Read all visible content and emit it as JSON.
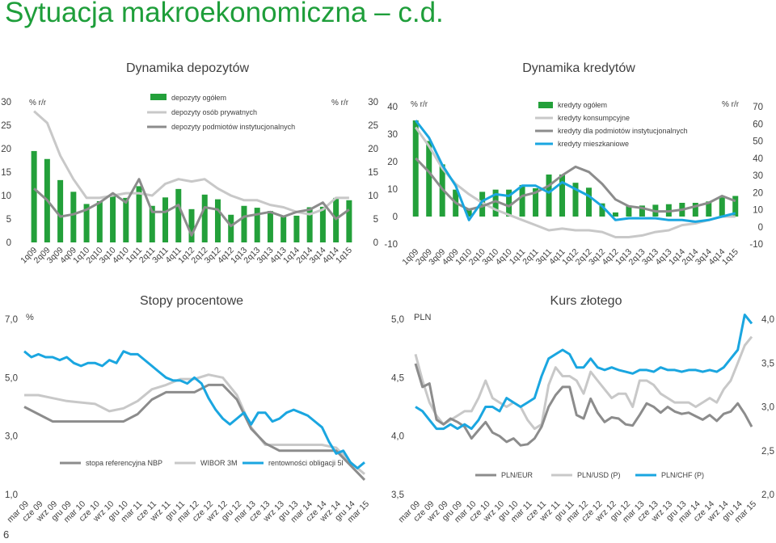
{
  "page": {
    "title": "Sytuacja makroekonomiczna – c.d.",
    "page_number": "6"
  },
  "colors": {
    "green": "#23a03a",
    "gray": "#8c8c8c",
    "lightgray": "#c8c8c8",
    "cyan": "#1aa6e0",
    "title": "#1e9e3a"
  },
  "chart_data": [
    {
      "id": "deposits",
      "type": "bar+line",
      "title": "Dynamika depozytów",
      "ylabel_left": "% r/r",
      "ylabel_right": "% r/r",
      "ylim": [
        0,
        30
      ],
      "yticks": [
        "0",
        "5",
        "10",
        "15",
        "20",
        "25",
        "30"
      ],
      "categories": [
        "1q09",
        "2q09",
        "3q09",
        "4q09",
        "1q10",
        "2q10",
        "3q10",
        "4q10",
        "1q11",
        "2q11",
        "3q11",
        "4q11",
        "1q12",
        "2q12",
        "3q12",
        "4q12",
        "1q13",
        "2q13",
        "3q13",
        "4q13",
        "1q14",
        "2q14",
        "3q14",
        "4q14",
        "1q15"
      ],
      "legend_placement": "top",
      "series": [
        {
          "name": "depozyty ogółem",
          "kind": "bar",
          "color": "#23a03a",
          "values": [
            19.5,
            17.8,
            13.3,
            10.8,
            8.2,
            8.8,
            10.1,
            9.5,
            12.0,
            7.8,
            9.6,
            11.4,
            7.1,
            10.2,
            9.2,
            5.9,
            7.8,
            7.4,
            6.7,
            5.6,
            5.7,
            7.5,
            7.6,
            9.5,
            9.0
          ]
        },
        {
          "name": "depozyty osób prywatnych",
          "kind": "line",
          "color": "#c8c8c8",
          "values": [
            28.0,
            25.5,
            18.5,
            13.5,
            9.5,
            9.5,
            10.0,
            10.5,
            10.5,
            10.0,
            12.5,
            13.5,
            13.0,
            13.5,
            11.5,
            10.0,
            9.0,
            9.0,
            8.0,
            7.5,
            6.5,
            6.0,
            7.0,
            9.5,
            9.5
          ]
        },
        {
          "name": "depozyty podmiotów instytucjonalnych",
          "kind": "line",
          "color": "#8c8c8c",
          "values": [
            11.5,
            9.0,
            5.5,
            6.0,
            7.0,
            8.5,
            10.5,
            8.5,
            13.5,
            6.5,
            6.5,
            8.0,
            1.5,
            7.5,
            7.0,
            3.5,
            5.5,
            6.0,
            6.5,
            5.5,
            6.5,
            7.0,
            8.5,
            5.0,
            7.0
          ]
        }
      ]
    },
    {
      "id": "credits",
      "type": "bar+line",
      "title": "Dynamika kredytów",
      "ylabel_left": "% r/r",
      "ylabel_right": "% r/r",
      "ylim_left": [
        -10,
        40
      ],
      "ylim_right": [
        -10,
        70
      ],
      "yticks_left": [
        "-10",
        "0",
        "10",
        "20",
        "30",
        "40"
      ],
      "yticks_right": [
        "-10",
        "0",
        "10",
        "20",
        "30",
        "40",
        "50",
        "60",
        "70"
      ],
      "categories": [
        "1q09",
        "2q09",
        "3q09",
        "4q09",
        "1q10",
        "2q10",
        "3q10",
        "4q10",
        "1q11",
        "2q11",
        "3q11",
        "4q11",
        "1q12",
        "2q12",
        "3q12",
        "4q12",
        "1q13",
        "2q13",
        "3q13",
        "4q13",
        "1q14",
        "2q14",
        "3q14",
        "4q14",
        "1q15"
      ],
      "legend_placement": "top-right",
      "series": [
        {
          "name": "kredyty ogółem",
          "kind": "bar",
          "axis": "left",
          "color": "#23a03a",
          "values": [
            35.0,
            27.5,
            19.0,
            9.8,
            3.0,
            9.0,
            9.8,
            9.8,
            11.5,
            10.3,
            15.3,
            15.3,
            12.3,
            10.5,
            4.8,
            1.5,
            4.0,
            4.0,
            4.3,
            4.5,
            5.0,
            5.0,
            5.5,
            7.0,
            7.5
          ]
        },
        {
          "name": "kredyty konsumpcyjne",
          "kind": "line",
          "axis": "right",
          "color": "#c8c8c8",
          "values": [
            58,
            47,
            34,
            25,
            19,
            14,
            10,
            7,
            4,
            1,
            -2,
            -1,
            -2,
            -2,
            -3,
            -6,
            -6,
            -5,
            -3,
            -2,
            1,
            2,
            4,
            6,
            6
          ]
        },
        {
          "name": "kredyty dla podmiotów instytucjonalnych",
          "kind": "line",
          "axis": "right",
          "color": "#8c8c8c",
          "values": [
            40,
            32,
            22,
            14,
            10,
            12,
            15,
            12,
            18,
            20,
            24,
            30,
            35,
            32,
            25,
            16,
            12,
            11,
            9,
            9,
            10,
            12,
            14,
            18,
            15
          ]
        },
        {
          "name": "kredyty mieszkaniowe",
          "kind": "line",
          "axis": "right",
          "color": "#1aa6e0",
          "values": [
            62,
            52,
            36,
            24,
            4,
            15,
            19,
            18,
            24,
            24,
            20,
            26,
            22,
            18,
            12,
            4,
            5,
            5,
            5,
            4,
            4,
            3,
            4,
            6,
            8
          ]
        }
      ]
    },
    {
      "id": "rates",
      "type": "line",
      "title": "Stopy procentowe",
      "ylabel": "%",
      "ylim": [
        1,
        7
      ],
      "yticks": [
        "1,0",
        "3,0",
        "5,0",
        "7,0"
      ],
      "xticks": [
        "mar 09",
        "cze 09",
        "wrz 09",
        "gru 09",
        "mar 10",
        "cze 10",
        "wrz 10",
        "gru 10",
        "mar 11",
        "cze 11",
        "wrz 11",
        "gru 11",
        "mar 12",
        "cze 12",
        "wrz 12",
        "gru 12",
        "mar 13",
        "cze 13",
        "wrz 13",
        "gru 13",
        "mar 14",
        "cze 14",
        "wrz 14",
        "gru 14",
        "mar 15"
      ],
      "legend_placement": "bottom",
      "series": [
        {
          "name": "stopa referencyjna NBP",
          "color": "#8c8c8c",
          "x": [
            0,
            1,
            2,
            3,
            4,
            5,
            6,
            7,
            8,
            9,
            10,
            11,
            12,
            13,
            14,
            15,
            16,
            17,
            18,
            19,
            20,
            21,
            22,
            23,
            24
          ],
          "values": [
            4.0,
            3.75,
            3.5,
            3.5,
            3.5,
            3.5,
            3.5,
            3.5,
            3.75,
            4.25,
            4.5,
            4.5,
            4.5,
            4.75,
            4.75,
            4.25,
            3.25,
            2.75,
            2.5,
            2.5,
            2.5,
            2.5,
            2.5,
            2.0,
            1.5
          ]
        },
        {
          "name": "WIBOR 3M",
          "color": "#c8c8c8",
          "x": [
            0,
            1,
            2,
            3,
            4,
            5,
            6,
            7,
            8,
            9,
            10,
            11,
            12,
            13,
            14,
            15,
            16,
            17,
            18,
            19,
            20,
            21,
            22,
            23,
            24
          ],
          "values": [
            4.4,
            4.4,
            4.3,
            4.2,
            4.15,
            4.1,
            3.85,
            3.95,
            4.2,
            4.6,
            4.75,
            4.95,
            4.95,
            5.1,
            5.0,
            4.4,
            3.3,
            2.7,
            2.7,
            2.7,
            2.7,
            2.7,
            2.6,
            2.1,
            1.7
          ]
        },
        {
          "name": "rentowności obligacji 5l",
          "color": "#1aa6e0",
          "x": [
            0,
            0.5,
            1,
            1.5,
            2,
            2.5,
            3,
            3.5,
            4,
            4.5,
            5,
            5.5,
            6,
            6.5,
            7,
            7.5,
            8,
            8.5,
            9,
            9.5,
            10,
            10.5,
            11,
            11.5,
            12,
            12.5,
            13,
            13.5,
            14,
            14.5,
            15,
            15.5,
            16,
            16.5,
            17,
            17.5,
            18,
            18.5,
            19,
            19.5,
            20,
            20.5,
            21,
            21.5,
            22,
            22.5,
            23,
            23.5,
            24
          ],
          "values": [
            5.9,
            5.7,
            5.8,
            5.7,
            5.7,
            5.6,
            5.7,
            5.5,
            5.4,
            5.5,
            5.5,
            5.4,
            5.6,
            5.5,
            5.9,
            5.8,
            5.8,
            5.6,
            5.4,
            5.2,
            5.0,
            4.9,
            4.9,
            4.8,
            5.0,
            4.8,
            4.3,
            3.9,
            3.6,
            3.4,
            3.6,
            3.8,
            3.4,
            3.8,
            3.8,
            3.5,
            3.6,
            3.8,
            3.9,
            3.8,
            3.7,
            3.5,
            3.3,
            2.8,
            2.4,
            2.5,
            2.1,
            1.9,
            2.1
          ]
        }
      ]
    },
    {
      "id": "fx",
      "type": "line",
      "title": "Kurs złotego",
      "ylabel_left": "PLN",
      "ylim_left": [
        3.5,
        5.0
      ],
      "ylim_right": [
        2.0,
        4.0
      ],
      "yticks_left": [
        "3,5",
        "4,0",
        "4,5",
        "5,0"
      ],
      "yticks_right": [
        "2,0",
        "2,5",
        "3,0",
        "3,5",
        "4,0"
      ],
      "xticks": [
        "mar 09",
        "cze 09",
        "wrz 09",
        "gru 09",
        "mar 10",
        "cze 10",
        "wrz 10",
        "gru 10",
        "mar 11",
        "cze 11",
        "wrz 11",
        "gru 11",
        "mar 12",
        "cze 12",
        "wrz 12",
        "gru 12",
        "mar 13",
        "cze 13",
        "wrz 13",
        "gru 13",
        "mar 14",
        "cze 14",
        "wrz 14",
        "gru 14",
        "mar 15"
      ],
      "legend_placement": "bottom",
      "series": [
        {
          "name": "PLN/EUR",
          "axis": "left",
          "color": "#8c8c8c",
          "x": [
            0,
            0.5,
            1,
            1.5,
            2,
            2.5,
            3,
            3.5,
            4,
            4.5,
            5,
            5.5,
            6,
            6.5,
            7,
            7.5,
            8,
            8.5,
            9,
            9.5,
            10,
            10.5,
            11,
            11.5,
            12,
            12.5,
            13,
            13.5,
            14,
            14.5,
            15,
            15.5,
            16,
            16.5,
            17,
            17.5,
            18,
            18.5,
            19,
            19.5,
            20,
            20.5,
            21,
            21.5,
            22,
            22.5,
            23,
            23.5,
            24
          ],
          "values": [
            4.62,
            4.42,
            4.45,
            4.14,
            4.1,
            4.15,
            4.12,
            4.08,
            3.98,
            4.05,
            4.12,
            4.03,
            4.0,
            3.95,
            3.98,
            3.92,
            3.93,
            3.98,
            4.08,
            4.25,
            4.35,
            4.42,
            4.42,
            4.18,
            4.15,
            4.32,
            4.2,
            4.12,
            4.16,
            4.15,
            4.1,
            4.09,
            4.18,
            4.28,
            4.25,
            4.2,
            4.25,
            4.21,
            4.19,
            4.2,
            4.17,
            4.14,
            4.18,
            4.13,
            4.19,
            4.21,
            4.28,
            4.19,
            4.08
          ]
        },
        {
          "name": "PLN/USD (P)",
          "axis": "right",
          "color": "#c8c8c8",
          "x": [
            0,
            0.5,
            1,
            1.5,
            2,
            2.5,
            3,
            3.5,
            4,
            4.5,
            5,
            5.5,
            6,
            6.5,
            7,
            7.5,
            8,
            8.5,
            9,
            9.5,
            10,
            10.5,
            11,
            11.5,
            12,
            12.5,
            13,
            13.5,
            14,
            14.5,
            15,
            15.5,
            16,
            16.5,
            17,
            17.5,
            18,
            18.5,
            19,
            19.5,
            20,
            20.5,
            21,
            21.5,
            22,
            22.5,
            23,
            23.5,
            24
          ],
          "values": [
            3.6,
            3.3,
            3.05,
            2.9,
            2.8,
            2.85,
            2.9,
            2.95,
            2.95,
            3.1,
            3.3,
            3.1,
            3.05,
            3.0,
            3.05,
            3.0,
            2.85,
            2.75,
            2.8,
            3.25,
            3.45,
            3.35,
            3.35,
            3.3,
            3.15,
            3.4,
            3.3,
            3.2,
            3.1,
            3.15,
            3.15,
            3.0,
            3.3,
            3.3,
            3.25,
            3.15,
            3.1,
            3.05,
            3.05,
            3.05,
            3.0,
            3.05,
            3.1,
            3.05,
            3.2,
            3.3,
            3.5,
            3.7,
            3.8
          ]
        },
        {
          "name": "PLN/CHF (P)",
          "axis": "right",
          "color": "#1aa6e0",
          "x": [
            0,
            0.5,
            1,
            1.5,
            2,
            2.5,
            3,
            3.5,
            4,
            4.5,
            5,
            5.5,
            6,
            6.5,
            7,
            7.5,
            8,
            8.5,
            9,
            9.5,
            10,
            10.5,
            11,
            11.5,
            12,
            12.5,
            13,
            13.5,
            14,
            14.5,
            15,
            15.5,
            16,
            16.5,
            17,
            17.5,
            18,
            18.5,
            19,
            19.5,
            20,
            20.5,
            21,
            21.5,
            22,
            22.5,
            23,
            23.5,
            24
          ],
          "values": [
            3.0,
            2.95,
            2.85,
            2.75,
            2.75,
            2.8,
            2.75,
            2.8,
            2.75,
            2.85,
            3.0,
            3.0,
            2.95,
            3.1,
            3.05,
            3.0,
            3.05,
            3.1,
            3.35,
            3.55,
            3.6,
            3.65,
            3.6,
            3.45,
            3.45,
            3.55,
            3.45,
            3.42,
            3.45,
            3.42,
            3.4,
            3.38,
            3.42,
            3.42,
            3.4,
            3.45,
            3.42,
            3.42,
            3.4,
            3.42,
            3.42,
            3.4,
            3.42,
            3.4,
            3.45,
            3.55,
            3.65,
            4.05,
            3.95
          ]
        }
      ]
    }
  ]
}
